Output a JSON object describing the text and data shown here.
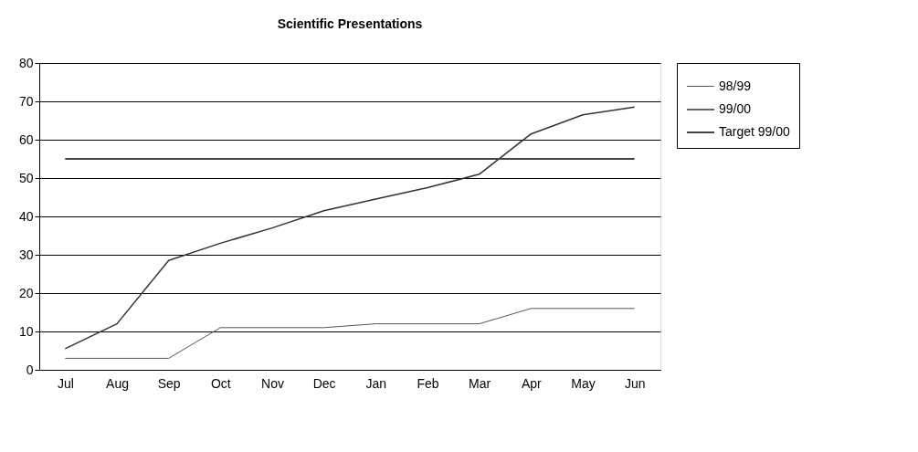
{
  "chart_data": {
    "type": "line",
    "title": "Scientific Presentations",
    "categories": [
      "Jul",
      "Aug",
      "Sep",
      "Oct",
      "Nov",
      "Dec",
      "Jan",
      "Feb",
      "Mar",
      "Apr",
      "May",
      "Jun"
    ],
    "series": [
      {
        "name": "98/99",
        "color": "#555555",
        "values": [
          3,
          3,
          3,
          11,
          11,
          11,
          12,
          12,
          12,
          16,
          16,
          16
        ]
      },
      {
        "name": "99/00",
        "color": "#333333",
        "values": [
          5.5,
          12,
          28.5,
          33,
          37,
          41.5,
          44.5,
          47.5,
          51,
          61.5,
          66.5,
          68.5
        ]
      },
      {
        "name": "Target 99/00",
        "color": "#444444",
        "values": [
          55,
          55,
          55,
          55,
          55,
          55,
          55,
          55,
          55,
          55,
          55,
          55
        ]
      }
    ],
    "ylim": [
      0,
      80
    ],
    "yticks": [
      0,
      10,
      20,
      30,
      40,
      50,
      60,
      70,
      80
    ],
    "grid": "y",
    "legend": "right",
    "marker": "none"
  }
}
